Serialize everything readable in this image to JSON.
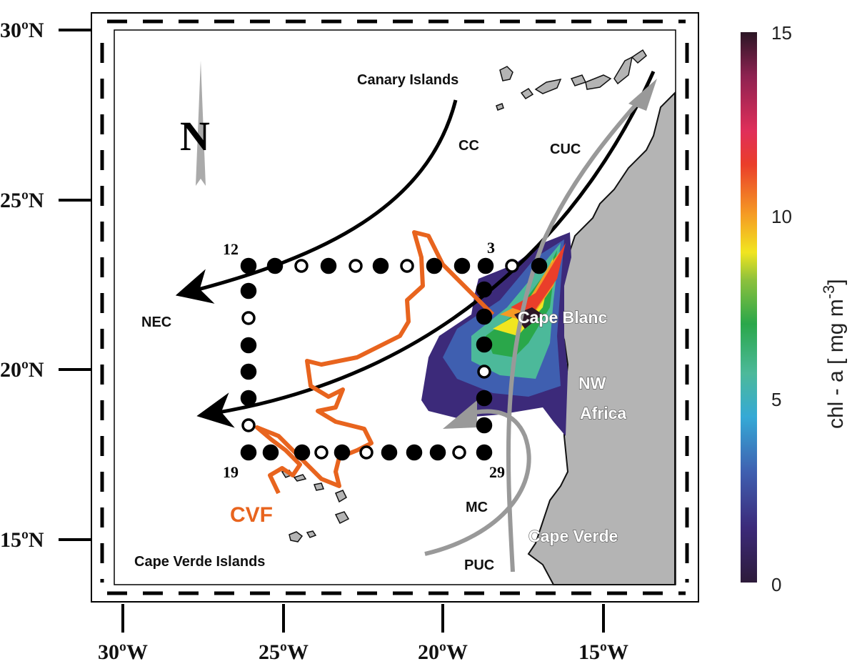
{
  "map": {
    "lat_labels": [
      "30ºN",
      "25ºN",
      "20ºN",
      "15ºN"
    ],
    "lon_labels": [
      "30ºW",
      "25ºW",
      "20ºW",
      "15ºW"
    ],
    "north_label": "N",
    "place_labels": {
      "canary": "Canary Islands",
      "cape_verde_islands": "Cape Verde Islands",
      "cape_blanc": "Cape Blanc",
      "nw_africa_1": "NW",
      "nw_africa_2": "Africa",
      "cape_verde": "Cape Verde"
    },
    "currents": {
      "cc": "CC",
      "cuc": "CUC",
      "nec": "NEC",
      "mc": "MC",
      "puc": "PUC"
    },
    "front_label": "CVF",
    "station_labels": {
      "nw": "12",
      "ne": "3",
      "sw": "19",
      "se": "29"
    },
    "colors": {
      "front": "#e8641e",
      "land": "#b4b4b4",
      "current_black": "#000000",
      "current_gray": "#999999"
    }
  },
  "colorbar": {
    "label_main": "chl - a [ mg  m",
    "label_sup": "-3",
    "label_end": "]",
    "ticks": [
      "15",
      "10",
      "5",
      "0"
    ],
    "range": [
      0,
      15
    ],
    "colormap": [
      "#2d1b3a",
      "#3c2a7a",
      "#3f5fb0",
      "#35a9d6",
      "#4cb99a",
      "#2aa74a",
      "#8dc13c",
      "#f1e51f",
      "#f59a24",
      "#ea3e2a",
      "#e02f5a",
      "#8e2251",
      "#2b1625"
    ]
  }
}
